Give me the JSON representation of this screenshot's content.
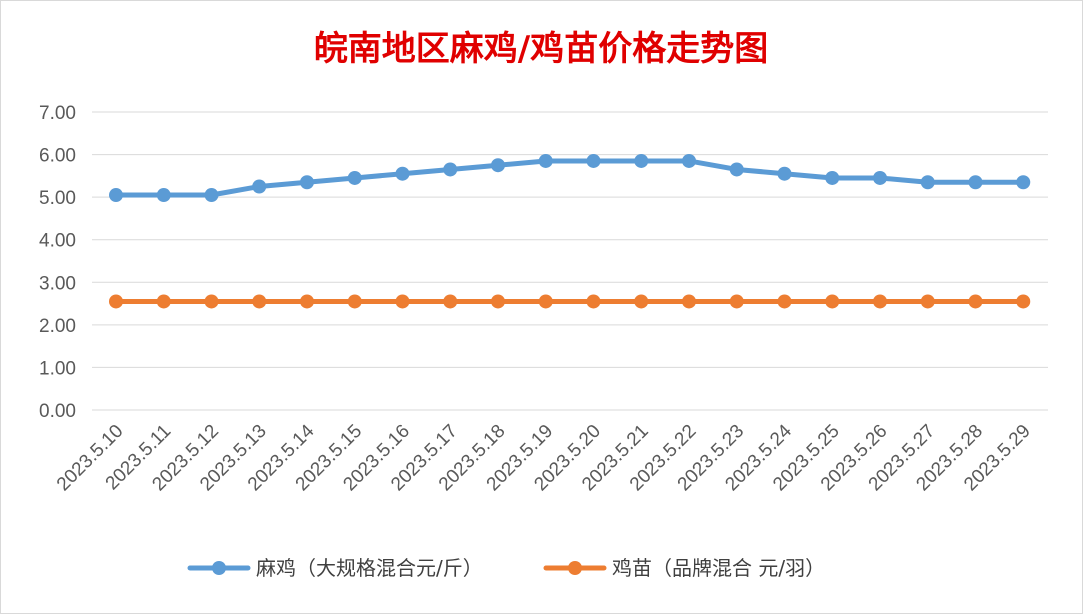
{
  "chart_data": {
    "type": "line",
    "title": "皖南地区麻鸡/鸡苗价格走势图",
    "title_color": "#e00000",
    "xlabel": "",
    "ylabel": "",
    "ylim": [
      0,
      7
    ],
    "y_ticks": [
      "0.00",
      "1.00",
      "2.00",
      "3.00",
      "4.00",
      "5.00",
      "6.00",
      "7.00"
    ],
    "grid": true,
    "legend_position": "bottom",
    "categories": [
      "2023.5.10",
      "2023.5.11",
      "2023.5.12",
      "2023.5.13",
      "2023.5.14",
      "2023.5.15",
      "2023.5.16",
      "2023.5.17",
      "2023.5.18",
      "2023.5.19",
      "2023.5.20",
      "2023.5.21",
      "2023.5.22",
      "2023.5.23",
      "2023.5.24",
      "2023.5.25",
      "2023.5.26",
      "2023.5.27",
      "2023.5.28",
      "2023.5.29"
    ],
    "series": [
      {
        "name": "麻鸡（大规格混合元/斤）",
        "color": "#5b9bd5",
        "values": [
          5.05,
          5.05,
          5.05,
          5.25,
          5.35,
          5.45,
          5.55,
          5.65,
          5.75,
          5.85,
          5.85,
          5.85,
          5.85,
          5.65,
          5.55,
          5.45,
          5.45,
          5.35,
          5.35,
          5.35
        ]
      },
      {
        "name": "鸡苗（品牌混合 元/羽）",
        "color": "#ed7d31",
        "values": [
          2.55,
          2.55,
          2.55,
          2.55,
          2.55,
          2.55,
          2.55,
          2.55,
          2.55,
          2.55,
          2.55,
          2.55,
          2.55,
          2.55,
          2.55,
          2.55,
          2.55,
          2.55,
          2.55,
          2.55
        ]
      }
    ]
  }
}
